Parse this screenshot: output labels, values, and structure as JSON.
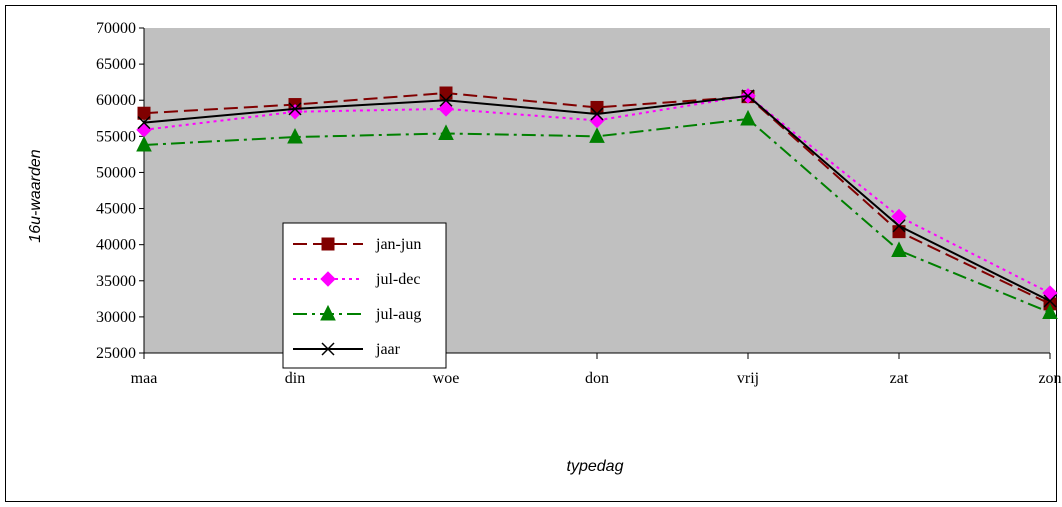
{
  "chart_data": {
    "type": "line",
    "title": "",
    "xlabel": "typedag",
    "ylabel": "16u-waarden",
    "categories": [
      "maa",
      "din",
      "woe",
      "don",
      "vrij",
      "zat",
      "zon"
    ],
    "ylim": [
      25000,
      70000
    ],
    "yticks": [
      25000,
      30000,
      35000,
      40000,
      45000,
      50000,
      55000,
      60000,
      65000,
      70000
    ],
    "grid": false,
    "plot_background": "#c0c0c0",
    "legend_position": "inside-left",
    "series": [
      {
        "name": "jan-jun",
        "color": "#800000",
        "dash": "dashed",
        "marker": "square",
        "values": [
          58200,
          59400,
          61000,
          59000,
          60500,
          41800,
          31800
        ]
      },
      {
        "name": "jul-dec",
        "color": "#ff00ff",
        "dash": "dotted",
        "marker": "diamond",
        "values": [
          55900,
          58400,
          58800,
          57200,
          60600,
          43900,
          33300
        ]
      },
      {
        "name": "jul-aug",
        "color": "#008000",
        "dash": "dashdot",
        "marker": "triangle",
        "values": [
          53800,
          54900,
          55400,
          55000,
          57400,
          39200,
          30600
        ]
      },
      {
        "name": "jaar",
        "color": "#000000",
        "dash": "solid",
        "marker": "x",
        "values": [
          56900,
          58800,
          60000,
          58100,
          60600,
          42600,
          32200
        ]
      }
    ]
  }
}
